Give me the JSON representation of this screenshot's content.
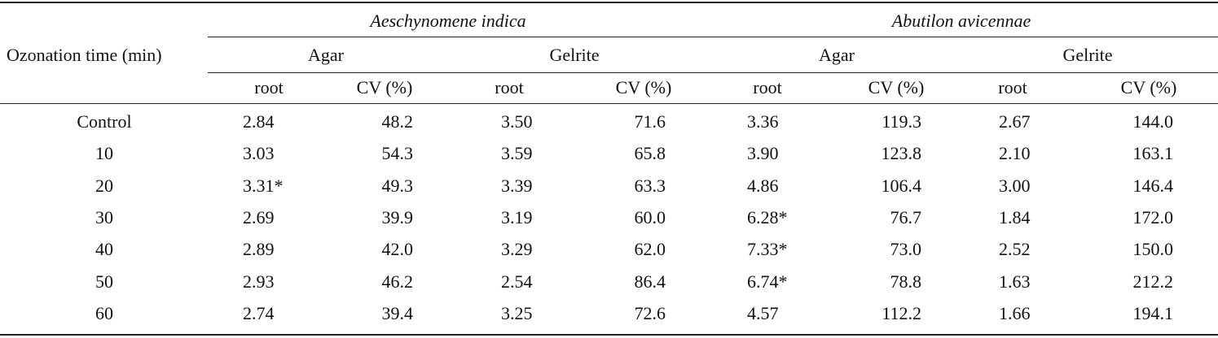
{
  "header": {
    "row_label": "Ozonation time (min)",
    "species": [
      "Aeschynomene indica",
      "Abutilon avicennae"
    ],
    "media": [
      "Agar",
      "Gelrite",
      "Agar",
      "Gelrite"
    ],
    "subheaders": [
      "root",
      "CV (%)",
      "root",
      "CV (%)",
      "root",
      "CV (%)",
      "root",
      "CV (%)"
    ]
  },
  "rows": [
    {
      "label": "Control",
      "values": [
        "2.84",
        "48.2",
        "3.50",
        "71.6",
        "3.36",
        "119.3",
        "2.67",
        "144.0"
      ]
    },
    {
      "label": "10",
      "values": [
        "3.03",
        "54.3",
        "3.59",
        "65.8",
        "3.90",
        "123.8",
        "2.10",
        "163.1"
      ]
    },
    {
      "label": "20",
      "values": [
        "3.31*",
        "49.3",
        "3.39",
        "63.3",
        "4.86",
        "106.4",
        "3.00",
        "146.4"
      ]
    },
    {
      "label": "30",
      "values": [
        "2.69",
        "39.9",
        "3.19",
        "60.0",
        "6.28*",
        "76.7",
        "1.84",
        "172.0"
      ]
    },
    {
      "label": "40",
      "values": [
        "2.89",
        "42.0",
        "3.29",
        "62.0",
        "7.33*",
        "73.0",
        "2.52",
        "150.0"
      ]
    },
    {
      "label": "50",
      "values": [
        "2.93",
        "46.2",
        "2.54",
        "86.4",
        "6.74*",
        "78.8",
        "1.63",
        "212.2"
      ]
    },
    {
      "label": "60",
      "values": [
        "2.74",
        "39.4",
        "3.25",
        "72.6",
        "4.57",
        "112.2",
        "1.66",
        "194.1"
      ]
    }
  ]
}
